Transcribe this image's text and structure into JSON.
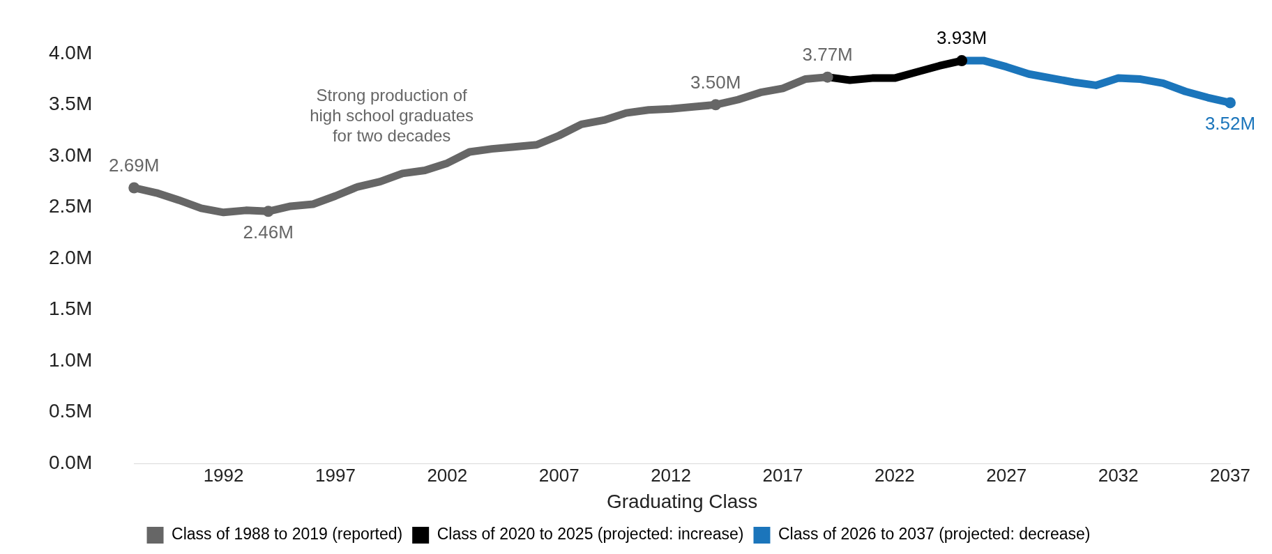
{
  "chart_data": {
    "type": "line",
    "xlabel": "Graduating Class",
    "annotations": [
      "Strong production of\nhigh school graduates\nfor two decades"
    ],
    "xlim": [
      1988,
      2037
    ],
    "xticks": [
      1992,
      1997,
      2002,
      2007,
      2012,
      2017,
      2022,
      2027,
      2032,
      2037
    ],
    "ylim": [
      0,
      4
    ],
    "yticks": [
      {
        "value": 0,
        "label": "0.0M"
      },
      {
        "value": 0.5,
        "label": "0.5M"
      },
      {
        "value": 1,
        "label": "1.0M"
      },
      {
        "value": 1.5,
        "label": "1.5M"
      },
      {
        "value": 2,
        "label": "2.0M"
      },
      {
        "value": 2.5,
        "label": "2.5M"
      },
      {
        "value": 3,
        "label": "3.0M"
      },
      {
        "value": 3.5,
        "label": "3.5M"
      },
      {
        "value": 4,
        "label": "4.0M"
      }
    ],
    "grid": false,
    "legend": "bottom",
    "series": [
      {
        "name": "Class of 1988 to 2019 (reported)",
        "color": "#666666",
        "x": [
          1988,
          1989,
          1990,
          1991,
          1992,
          1993,
          1994,
          1995,
          1996,
          1997,
          1998,
          1999,
          2000,
          2001,
          2002,
          2003,
          2004,
          2005,
          2006,
          2007,
          2008,
          2009,
          2010,
          2011,
          2012,
          2013,
          2014,
          2015,
          2016,
          2017,
          2018,
          2019
        ],
        "values": [
          2.69,
          2.64,
          2.57,
          2.49,
          2.45,
          2.47,
          2.46,
          2.51,
          2.53,
          2.61,
          2.7,
          2.75,
          2.83,
          2.86,
          2.93,
          3.04,
          3.07,
          3.09,
          3.11,
          3.2,
          3.31,
          3.35,
          3.42,
          3.45,
          3.46,
          3.48,
          3.5,
          3.55,
          3.62,
          3.66,
          3.75,
          3.77
        ],
        "value_labels": [
          "2.69M",
          null,
          null,
          null,
          null,
          null,
          "2.46M",
          null,
          null,
          null,
          null,
          null,
          null,
          null,
          null,
          null,
          null,
          null,
          null,
          null,
          null,
          null,
          null,
          null,
          null,
          null,
          "3.50M",
          null,
          null,
          null,
          null,
          "3.77M"
        ]
      },
      {
        "name": "Class of 2020 to 2025 (projected: increase)",
        "color": "#000000",
        "x": [
          2019,
          2020,
          2021,
          2022,
          2023,
          2024,
          2025
        ],
        "values": [
          3.77,
          3.74,
          3.76,
          3.76,
          3.82,
          3.88,
          3.93
        ],
        "value_labels": [
          null,
          null,
          null,
          null,
          null,
          null,
          "3.93M"
        ]
      },
      {
        "name": "Class of 2026 to 2037 (projected: decrease)",
        "color": "#1b75bb",
        "x": [
          2025,
          2026,
          2027,
          2028,
          2029,
          2030,
          2031,
          2032,
          2033,
          2034,
          2035,
          2036,
          2037
        ],
        "values": [
          3.93,
          3.93,
          3.87,
          3.8,
          3.76,
          3.72,
          3.69,
          3.76,
          3.75,
          3.71,
          3.63,
          3.57,
          3.52
        ],
        "value_labels": [
          null,
          null,
          null,
          null,
          null,
          null,
          null,
          null,
          null,
          null,
          null,
          null,
          "3.52M"
        ]
      }
    ]
  }
}
